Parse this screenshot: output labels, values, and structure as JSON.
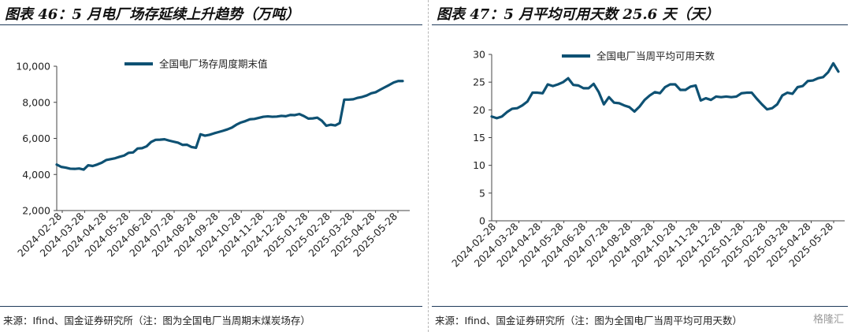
{
  "colors": {
    "series": "#0e5173",
    "rule": "#1f3b5a",
    "axis": "#444444"
  },
  "left": {
    "title": "图表 46：5 月电厂场存延续上升趋势（万吨）",
    "source": "来源：Ifind、国金证券研究所（注：图为全国电厂当周期末煤炭场存）",
    "chart_data": {
      "type": "line",
      "title": "图表 46：5 月电厂场存延续上升趋势（万吨）",
      "ylabel": "万吨",
      "ylim": [
        2000,
        10000
      ],
      "yticks": [
        2000,
        4000,
        6000,
        8000,
        10000
      ],
      "ytick_labels": [
        "2,000",
        "4,000",
        "6,000",
        "8,000",
        "10,000"
      ],
      "xtick_labels": [
        "2024-02-28",
        "2024-03-28",
        "2024-04-28",
        "2024-05-28",
        "2024-06-28",
        "2024-07-28",
        "2024-08-28",
        "2024-09-28",
        "2024-10-28",
        "2024-11-28",
        "2024-12-28",
        "2025-01-28",
        "2025-02-28",
        "2025-03-28",
        "2025-04-28",
        "2025-05-28"
      ],
      "series": [
        {
          "name": "全国电厂场存周度期末值",
          "values": [
            4550,
            4420,
            4380,
            4320,
            4310,
            4330,
            4270,
            4510,
            4470,
            4550,
            4650,
            4800,
            4850,
            4900,
            4980,
            5050,
            5200,
            5220,
            5440,
            5460,
            5560,
            5800,
            5920,
            5930,
            5950,
            5880,
            5820,
            5760,
            5640,
            5650,
            5520,
            5480,
            6230,
            6150,
            6200,
            6280,
            6350,
            6420,
            6500,
            6600,
            6760,
            6880,
            6960,
            7060,
            7080,
            7140,
            7200,
            7220,
            7200,
            7210,
            7250,
            7230,
            7300,
            7290,
            7350,
            7240,
            7100,
            7110,
            7150,
            6980,
            6700,
            6760,
            6720,
            6850,
            8150,
            8150,
            8170,
            8250,
            8300,
            8380,
            8500,
            8560,
            8700,
            8830,
            8960,
            9100,
            9180,
            9180
          ]
        }
      ]
    }
  },
  "right": {
    "title": "图表 47：5 月平均可用天数 25.6 天（天）",
    "source": "来源：Ifind、国金证券研究所（注：图为全国电厂当周平均可用天数）",
    "watermark": "格隆汇",
    "chart_data": {
      "type": "line",
      "title": "图表 47：5 月平均可用天数 25.6 天（天）",
      "ylabel": "天",
      "ylim": [
        0,
        30
      ],
      "yticks": [
        0,
        5,
        10,
        15,
        20,
        25,
        30
      ],
      "ytick_labels": [
        "0",
        "5",
        "10",
        "15",
        "20",
        "25",
        "30"
      ],
      "xtick_labels": [
        "2024-02-28",
        "2024-03-28",
        "2024-04-28",
        "2024-05-28",
        "2024-06-28",
        "2024-07-28",
        "2024-08-28",
        "2024-09-28",
        "2024-10-28",
        "2024-11-28",
        "2024-12-28",
        "2025-01-28",
        "2025-02-28",
        "2025-03-28",
        "2025-04-28",
        "2025-05-28"
      ],
      "series": [
        {
          "name": "全国电厂当周平均可用天数",
          "values": [
            18.8,
            18.5,
            18.8,
            19.6,
            20.2,
            20.3,
            20.8,
            21.5,
            23.1,
            23.1,
            23.0,
            24.6,
            24.3,
            24.6,
            25.0,
            25.7,
            24.5,
            24.4,
            23.9,
            23.9,
            24.7,
            23.2,
            21.0,
            22.3,
            21.3,
            21.2,
            20.8,
            20.5,
            19.7,
            20.6,
            21.8,
            22.6,
            23.2,
            23.0,
            24.1,
            24.6,
            24.6,
            23.6,
            23.6,
            24.2,
            24.4,
            21.7,
            22.1,
            21.8,
            22.4,
            22.3,
            22.4,
            22.3,
            22.4,
            23.0,
            23.1,
            23.1,
            22.0,
            21.0,
            20.1,
            20.3,
            21.0,
            22.6,
            23.1,
            22.9,
            24.1,
            24.3,
            25.2,
            25.3,
            25.7,
            25.9,
            26.8,
            28.4,
            26.9
          ]
        }
      ]
    }
  }
}
